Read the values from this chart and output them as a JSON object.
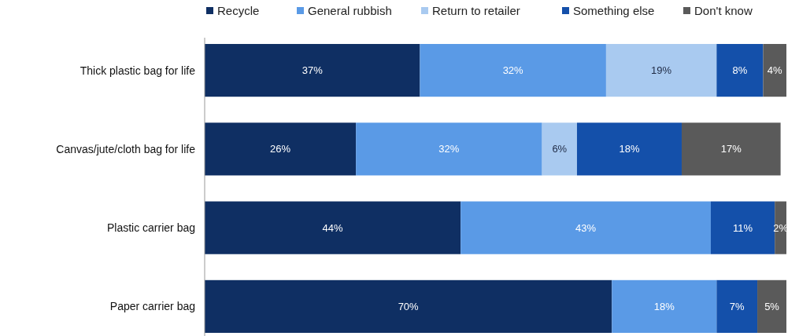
{
  "chart_data": {
    "type": "bar",
    "orientation": "horizontal",
    "stacked": true,
    "legend": "top",
    "tick_labels": "y",
    "xlim": [
      0,
      100
    ],
    "categories": [
      "Thick plastic bag for life",
      "Canvas/jute/cloth bag for life",
      "Plastic carrier bag",
      "Paper carrier bag"
    ],
    "series": [
      {
        "name": "Recycle",
        "color": "#0f2f63",
        "values": [
          37,
          26,
          44,
          70
        ],
        "value_labels": [
          "37%",
          "26%",
          "44%",
          "70%"
        ]
      },
      {
        "name": "General rubbish",
        "color": "#5a9ae6",
        "values": [
          32,
          32,
          43,
          18
        ],
        "value_labels": [
          "32%",
          "32%",
          "43%",
          "18%"
        ]
      },
      {
        "name": "Return to retailer",
        "color": "#a9caf0",
        "values": [
          19,
          6,
          null,
          null
        ],
        "value_labels": [
          "19%",
          "6%",
          null,
          null
        ]
      },
      {
        "name": "Something else",
        "color": "#1450aa",
        "values": [
          8,
          18,
          11,
          7
        ],
        "value_labels": [
          "8%",
          "18%",
          "11%",
          "7%"
        ]
      },
      {
        "name": "Don't know",
        "color": "#5a5a5a",
        "values": [
          4,
          17,
          2,
          5
        ],
        "value_labels": [
          "4%",
          "17%",
          "2%",
          "5%"
        ]
      }
    ]
  }
}
